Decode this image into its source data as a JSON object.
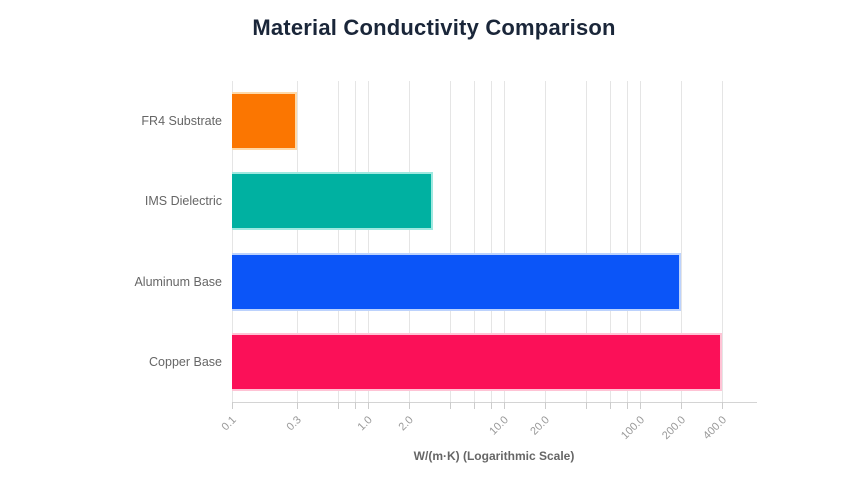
{
  "chart_data": {
    "type": "bar",
    "orientation": "horizontal",
    "title": "Material Conductivity Comparison",
    "xlabel": "W/(m·K) (Logarithmic Scale)",
    "ylabel": "",
    "x_scale": "logarithmic",
    "xlim": [
      0.1,
      710
    ],
    "grid": true,
    "legend": "none",
    "categories": [
      "FR4 Substrate",
      "IMS Dielectric",
      "Aluminum Base",
      "Copper Base"
    ],
    "values": [
      0.3,
      3,
      200,
      400
    ],
    "bars": [
      {
        "label": "FR4 Substrate",
        "value": 0.3,
        "fill": "#FB7601",
        "border": "#FED9A8"
      },
      {
        "label": "IMS Dielectric",
        "value": 3,
        "fill": "#00B1A1",
        "border": "#9FE9E0"
      },
      {
        "label": "Aluminum Base",
        "value": 200,
        "fill": "#0B55F8",
        "border": "#BCD2FD"
      },
      {
        "label": "Copper Base",
        "value": 400,
        "fill": "#FB1058",
        "border": "#FFC3D5"
      }
    ],
    "gridline_values": [
      0.1,
      0.3,
      0.6,
      0.8,
      1,
      2,
      4,
      6,
      8,
      10,
      20,
      40,
      60,
      80,
      100,
      200,
      400
    ],
    "tick_labels": [
      {
        "value": 0.1,
        "label": "0.1"
      },
      {
        "value": 0.3,
        "label": "0.3"
      },
      {
        "value": 1,
        "label": "1.0"
      },
      {
        "value": 2,
        "label": "2.0"
      },
      {
        "value": 10,
        "label": "10.0"
      },
      {
        "value": 20,
        "label": "20.0"
      },
      {
        "value": 100,
        "label": "100.0"
      },
      {
        "value": 200,
        "label": "200.0"
      },
      {
        "value": 400,
        "label": "400.0"
      }
    ]
  },
  "colors": {
    "background": "#ffffff",
    "title_text": "#1a2639",
    "category_text": "#666666",
    "tick_text": "#999999",
    "axis_title_text": "#666666",
    "gridline": "#e5e5e5",
    "axis_line": "#d4d4d4",
    "tick_mark": "#cccccc"
  }
}
